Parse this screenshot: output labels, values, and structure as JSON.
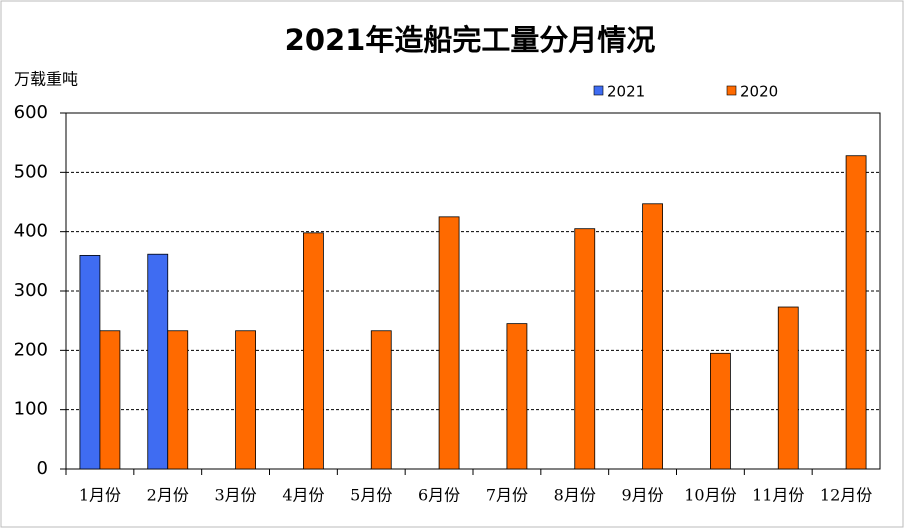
{
  "chart_data": {
    "type": "bar",
    "title": "2021年造船完工量分月情况",
    "y_label": "万载重吨",
    "categories": [
      "1月份",
      "2月份",
      "3月份",
      "4月份",
      "5月份",
      "6月份",
      "7月份",
      "8月份",
      "9月份",
      "10月份",
      "11月份",
      "12月份"
    ],
    "series": [
      {
        "name": "2021",
        "color": "#3f6cf2",
        "values": [
          360,
          362,
          null,
          null,
          null,
          null,
          null,
          null,
          null,
          null,
          null,
          null
        ]
      },
      {
        "name": "2020",
        "color": "#ff6a00",
        "values": [
          233,
          233,
          233,
          398,
          233,
          425,
          245,
          405,
          447,
          195,
          273,
          528
        ]
      }
    ],
    "ylim": [
      0,
      600
    ],
    "yticks": [
      0,
      100,
      200,
      300,
      400,
      500,
      600
    ],
    "grid": true,
    "legend": "top-right"
  }
}
